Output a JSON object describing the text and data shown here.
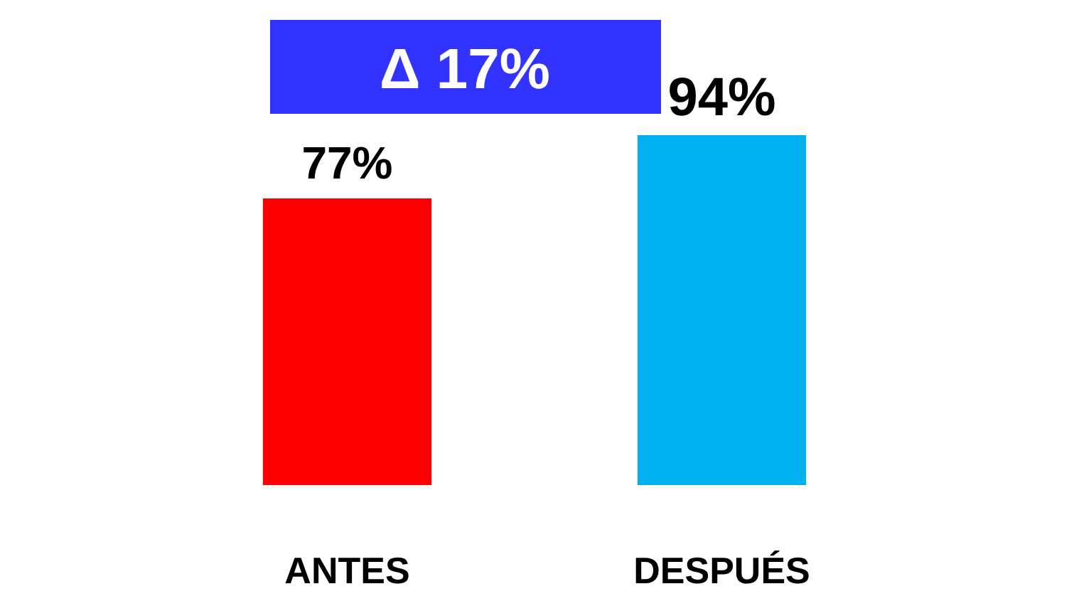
{
  "chart_data": {
    "type": "bar",
    "categories": [
      "ANTES",
      "DESPUÉS"
    ],
    "values": [
      77,
      94
    ],
    "colors": [
      "#ff0000",
      "#00b0f0"
    ],
    "value_labels": [
      "77%",
      "94%"
    ],
    "annotations": [
      "Δ 17%"
    ]
  }
}
